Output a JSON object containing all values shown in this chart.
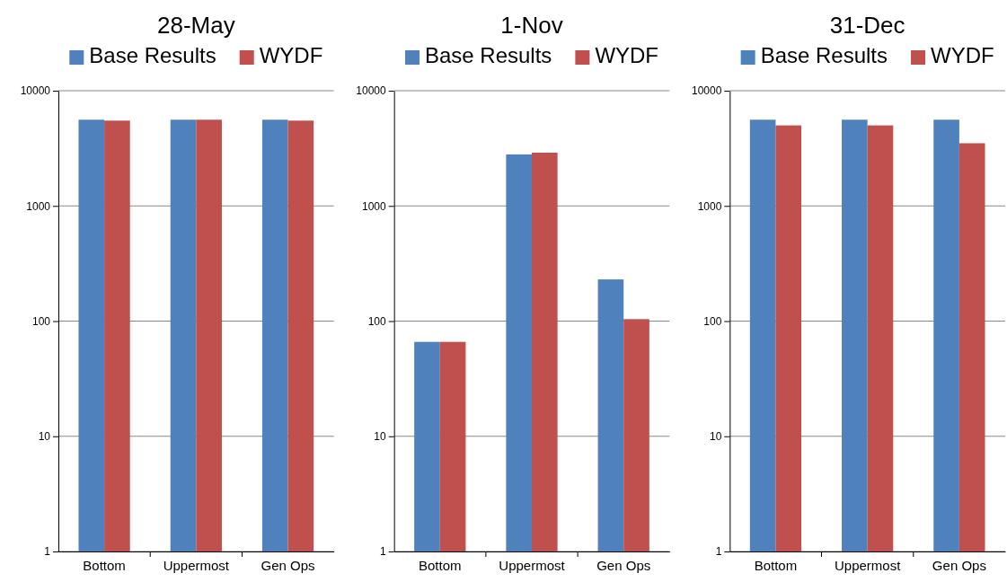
{
  "chart_data": [
    {
      "type": "bar",
      "title": "28-May",
      "categories": [
        "Bottom",
        "Uppermost",
        "Gen Ops"
      ],
      "series": [
        {
          "name": "Base Results",
          "color": "#4f81bd",
          "values": [
            5600,
            5600,
            5600
          ]
        },
        {
          "name": "WYDF",
          "color": "#c0504d",
          "values": [
            5500,
            5600,
            5500
          ]
        }
      ],
      "log": "y",
      "ylim": [
        1,
        10000
      ],
      "yticks": [
        1,
        10,
        100,
        1000,
        10000
      ],
      "grid": "y",
      "legend": "top"
    },
    {
      "type": "bar",
      "title": "1-Nov",
      "categories": [
        "Bottom",
        "Uppermost",
        "Gen Ops"
      ],
      "series": [
        {
          "name": "Base Results",
          "color": "#4f81bd",
          "values": [
            66,
            2800,
            230
          ]
        },
        {
          "name": "WYDF",
          "color": "#c0504d",
          "values": [
            66,
            2900,
            104
          ]
        }
      ],
      "log": "y",
      "ylim": [
        1,
        10000
      ],
      "yticks": [
        1,
        10,
        100,
        1000,
        10000
      ],
      "grid": "y",
      "legend": "top"
    },
    {
      "type": "bar",
      "title": "31-Dec",
      "categories": [
        "Bottom",
        "Uppermost",
        "Gen Ops"
      ],
      "series": [
        {
          "name": "Base Results",
          "color": "#4f81bd",
          "values": [
            5600,
            5600,
            5600
          ]
        },
        {
          "name": "WYDF",
          "color": "#c0504d",
          "values": [
            5000,
            5000,
            3500
          ]
        }
      ],
      "log": "y",
      "ylim": [
        1,
        10000
      ],
      "yticks": [
        1,
        10,
        100,
        1000,
        10000
      ],
      "grid": "y",
      "legend": "top"
    }
  ]
}
